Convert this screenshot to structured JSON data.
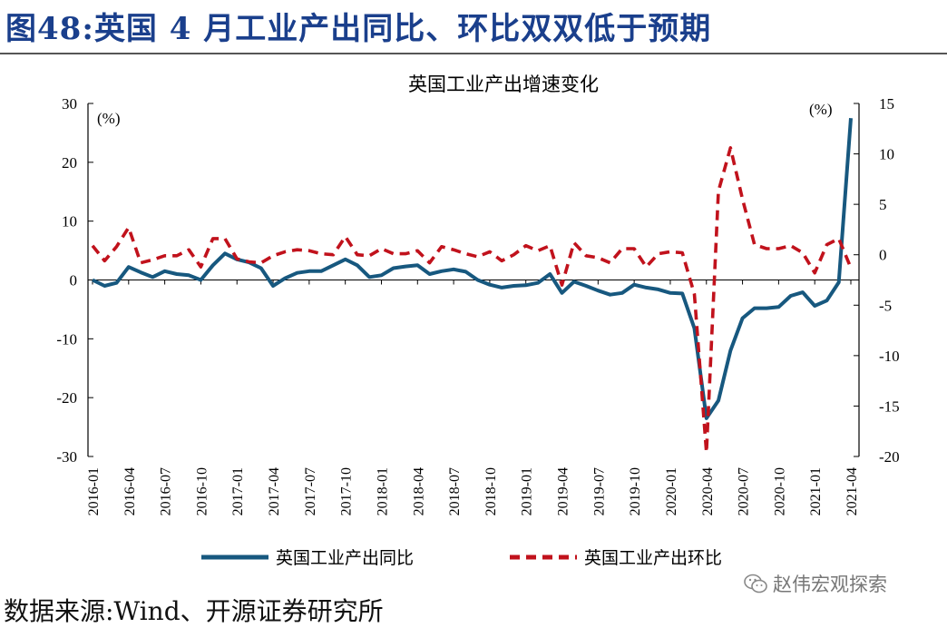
{
  "figure": {
    "title": "图48:英国 4 月工业产出同比、环比双双低于预期",
    "source": "数据来源:Wind、开源证券研究所",
    "watermark": "赵伟宏观探索",
    "watermark_icon": "wechat-icon"
  },
  "colors": {
    "yoy": "#17587f",
    "mom": "#c1121c",
    "axis": "#000000"
  },
  "chart_data": {
    "type": "line",
    "title": "英国工业产出增速变化",
    "left_unit": "(%)",
    "right_unit": "(%)",
    "ylim_left": [
      -30,
      30
    ],
    "ylim_right": [
      -20,
      15
    ],
    "yticks_left": [
      "30",
      "20",
      "10",
      "0",
      "-10",
      "-20",
      "-30"
    ],
    "yticks_right": [
      "15",
      "10",
      "5",
      "0",
      "-5",
      "-10",
      "-15",
      "-20"
    ],
    "xtick_labels": [
      "2016-01",
      "2016-04",
      "2016-07",
      "2016-10",
      "2017-01",
      "2017-04",
      "2017-07",
      "2017-10",
      "2018-01",
      "2018-04",
      "2018-07",
      "2018-10",
      "2019-01",
      "2019-04",
      "2019-07",
      "2019-10",
      "2020-01",
      "2020-04",
      "2020-07",
      "2020-10",
      "2021-01",
      "2021-04"
    ],
    "x": [
      "2016-01",
      "2016-02",
      "2016-03",
      "2016-04",
      "2016-05",
      "2016-06",
      "2016-07",
      "2016-08",
      "2016-09",
      "2016-10",
      "2016-11",
      "2016-12",
      "2017-01",
      "2017-02",
      "2017-03",
      "2017-04",
      "2017-05",
      "2017-06",
      "2017-07",
      "2017-08",
      "2017-09",
      "2017-10",
      "2017-11",
      "2017-12",
      "2018-01",
      "2018-02",
      "2018-03",
      "2018-04",
      "2018-05",
      "2018-06",
      "2018-07",
      "2018-08",
      "2018-09",
      "2018-10",
      "2018-11",
      "2018-12",
      "2019-01",
      "2019-02",
      "2019-03",
      "2019-04",
      "2019-05",
      "2019-06",
      "2019-07",
      "2019-08",
      "2019-09",
      "2019-10",
      "2019-11",
      "2019-12",
      "2020-01",
      "2020-02",
      "2020-03",
      "2020-04",
      "2020-05",
      "2020-06",
      "2020-07",
      "2020-08",
      "2020-09",
      "2020-10",
      "2020-11",
      "2020-12",
      "2021-01",
      "2021-02",
      "2021-03",
      "2021-04"
    ],
    "series": [
      {
        "name": "英国工业产出同比",
        "axis": "left",
        "style": "solid",
        "values": [
          0.0,
          -1.0,
          -0.5,
          2.2,
          1.3,
          0.5,
          1.5,
          1.0,
          0.8,
          0.0,
          2.5,
          4.5,
          3.5,
          3.0,
          2.0,
          -1.0,
          0.3,
          1.2,
          1.5,
          1.5,
          2.5,
          3.5,
          2.5,
          0.5,
          0.8,
          2.0,
          2.3,
          2.5,
          1.0,
          1.5,
          1.8,
          1.4,
          0.0,
          -0.8,
          -1.3,
          -1.0,
          -0.9,
          -0.5,
          1.0,
          -2.2,
          -0.3,
          -1.0,
          -1.8,
          -2.5,
          -2.2,
          -0.8,
          -1.3,
          -1.6,
          -2.2,
          -2.3,
          -8.2,
          -23.5,
          -20.5,
          -12.0,
          -6.5,
          -4.8,
          -4.8,
          -4.6,
          -2.7,
          -2.1,
          -4.4,
          -3.5,
          -0.4,
          27.5
        ]
      },
      {
        "name": "英国工业产出环比",
        "axis": "right",
        "style": "dashed",
        "values": [
          0.9,
          -0.6,
          0.8,
          2.7,
          -0.8,
          -0.5,
          -0.1,
          -0.1,
          0.5,
          -1.2,
          1.6,
          1.6,
          -0.4,
          -0.7,
          -0.8,
          -0.1,
          0.3,
          0.5,
          0.4,
          0.1,
          0.0,
          1.8,
          0.0,
          -0.1,
          0.6,
          0.1,
          0.1,
          0.4,
          -0.8,
          0.8,
          0.5,
          0.1,
          -0.2,
          0.3,
          -0.6,
          0.0,
          0.9,
          0.4,
          0.9,
          -3.0,
          1.2,
          -0.1,
          -0.3,
          -0.8,
          0.6,
          0.6,
          -1.2,
          0.1,
          0.3,
          0.2,
          -3.9,
          -19.6,
          6.3,
          10.6,
          5.5,
          1.0,
          0.6,
          0.6,
          0.9,
          0.2,
          -1.8,
          1.0,
          1.6,
          -1.3
        ]
      }
    ],
    "grid": false,
    "legend_position": "bottom"
  }
}
